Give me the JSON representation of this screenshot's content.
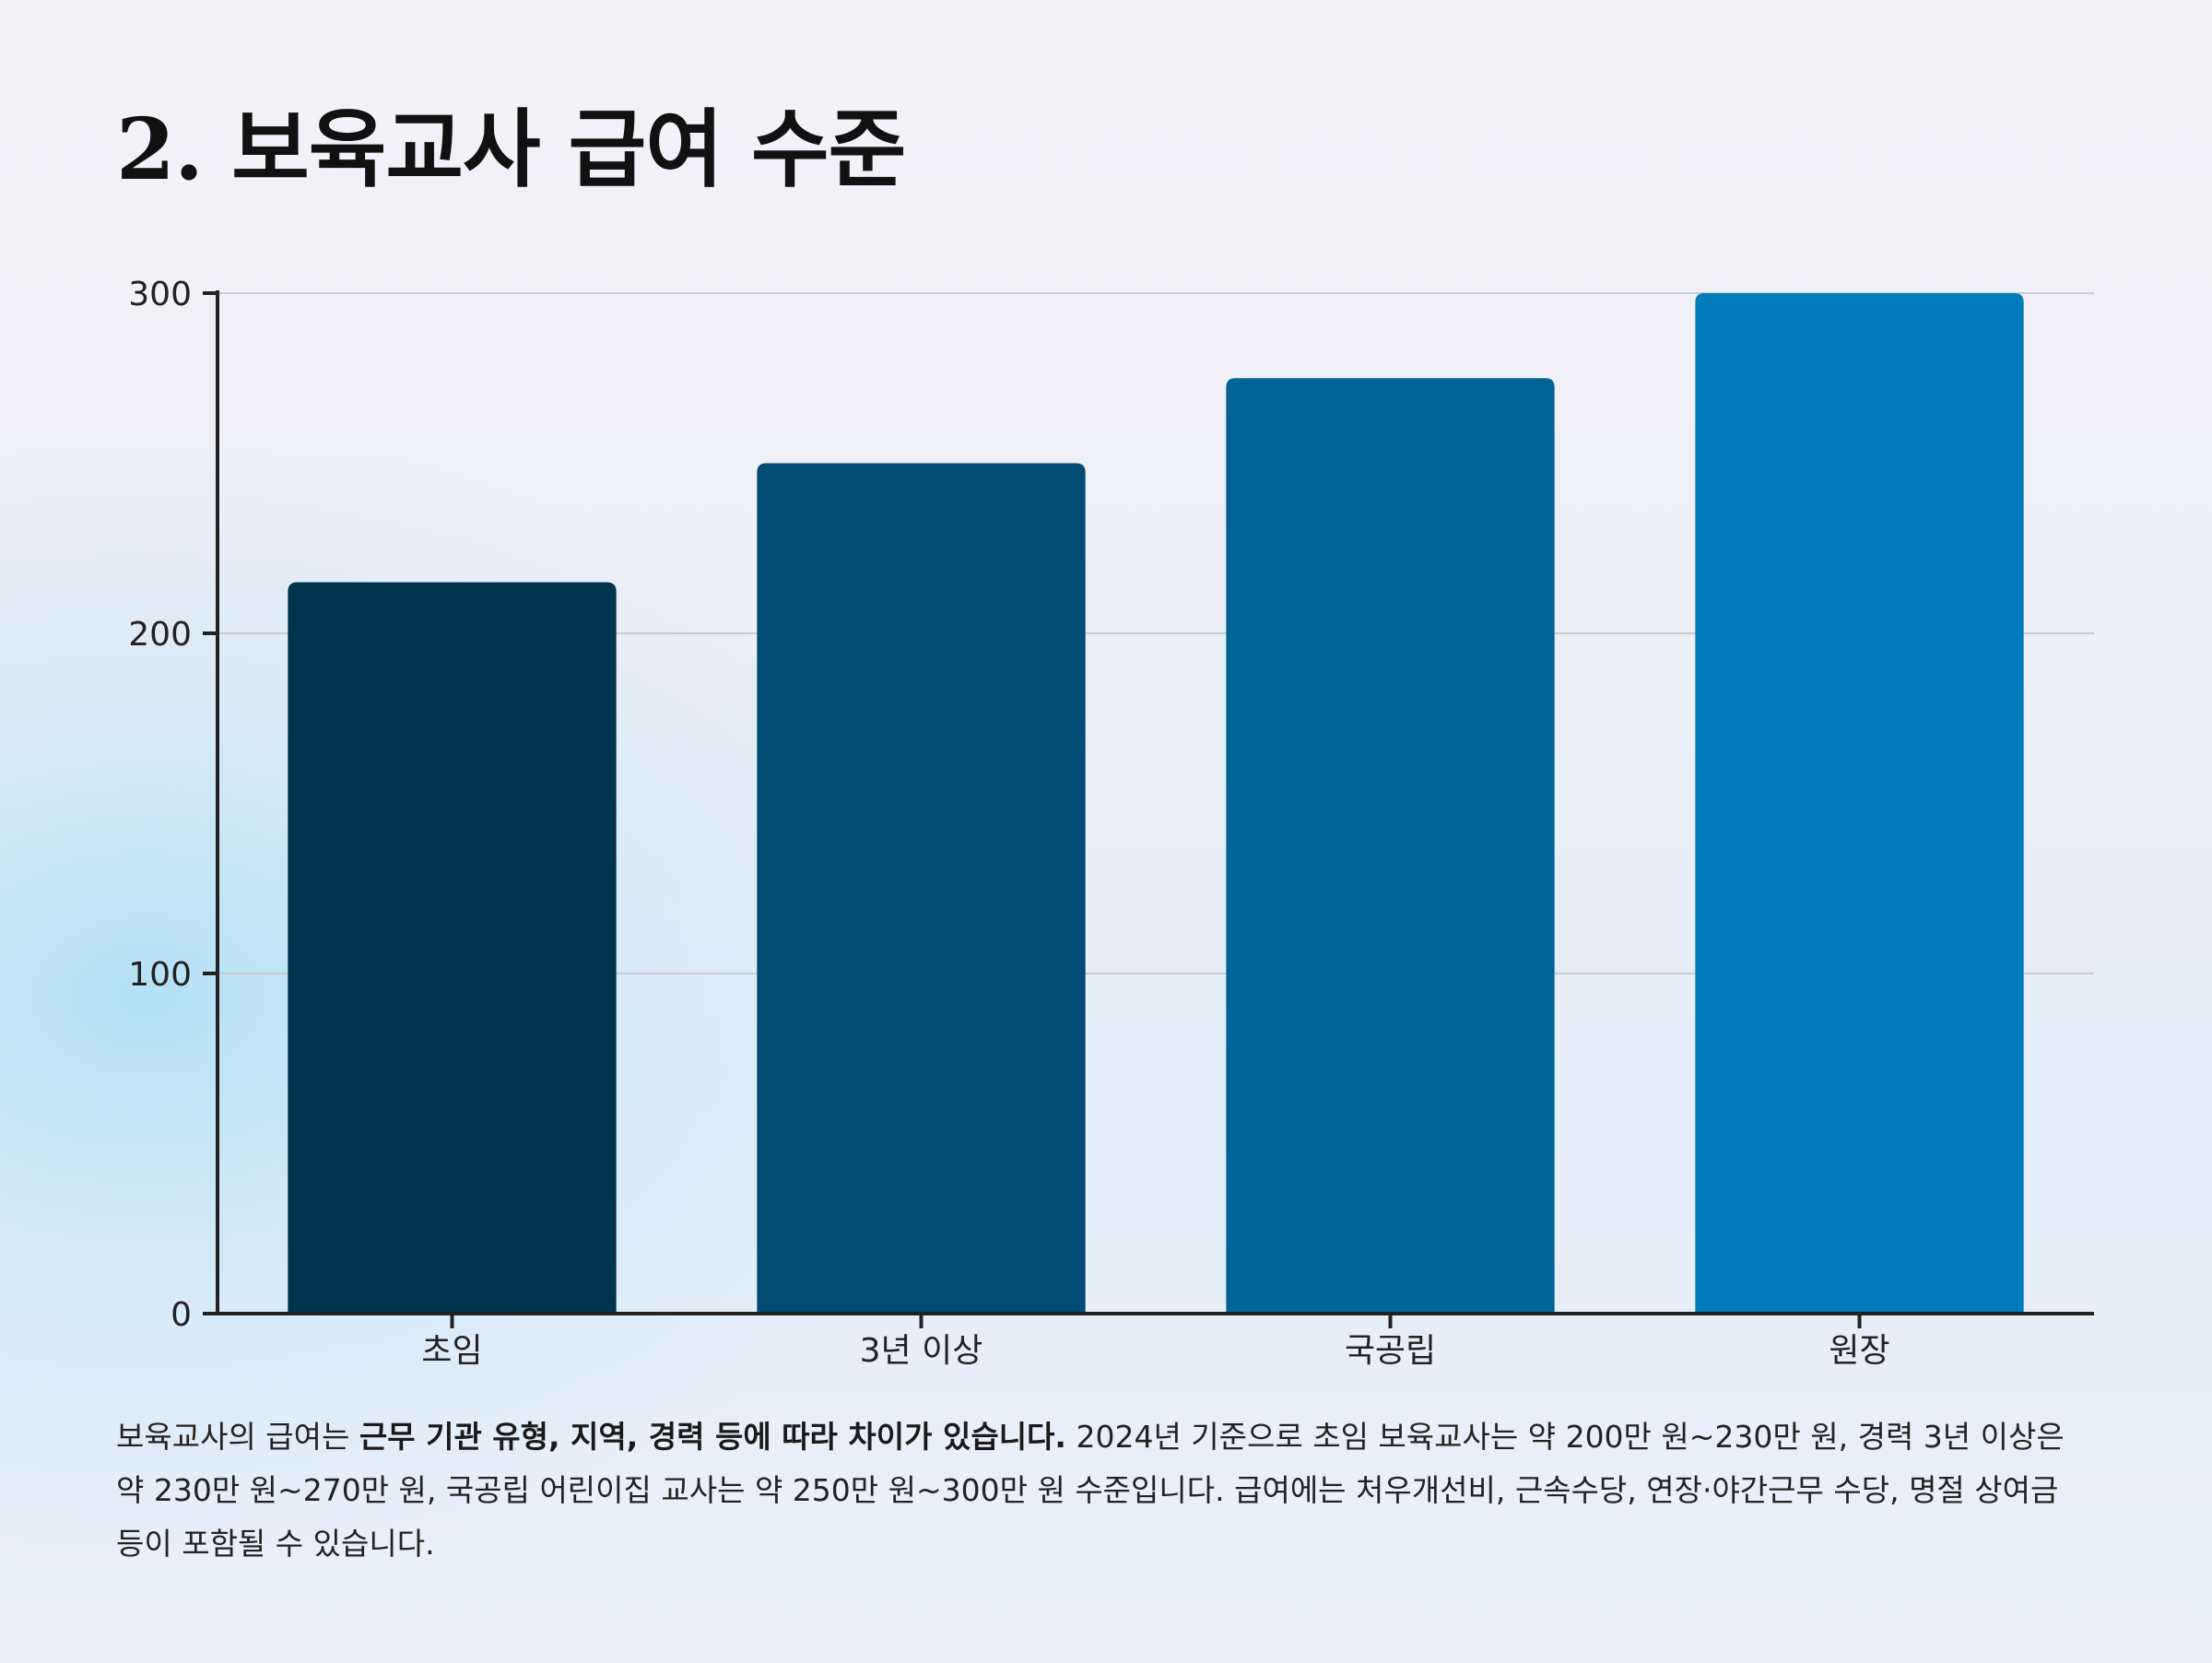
{
  "title": "2. 보육교사 급여 수준",
  "chart_data": {
    "type": "bar",
    "categories": [
      "초임",
      "3년 이상",
      "국공립",
      "원장"
    ],
    "values": [
      215,
      250,
      275,
      300
    ],
    "colors": [
      "#00334e",
      "#024b72",
      "#006497",
      "#007bbb"
    ],
    "yticks": [
      "0",
      "100",
      "200",
      "300"
    ],
    "ylim": [
      0,
      300
    ],
    "grid": true
  },
  "description": {
    "part1": "보육교사의 급여는 ",
    "bold": "근무 기관 유형, 지역, 경력 등에 따라 차이가 있습니다.",
    "part2": " 2024년 기준으로 초임 보육교사는 약 200만 원~230만 원, 경력 3년 이상은 약 230만 원~270만 원, 국공립 어린이집 교사는 약 250만 원~300만 원 수준입니다. 급여에는 처우개선비, 근속수당, 연장·야간근무 수당, 명절 상여금 등이 포함될 수 있습니다."
  }
}
